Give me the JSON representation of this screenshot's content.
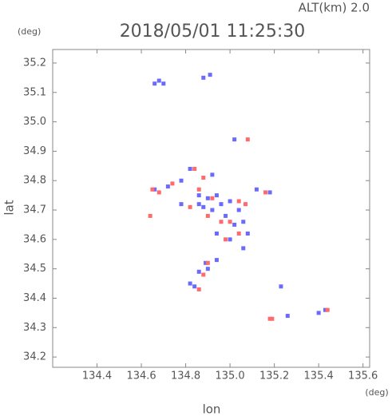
{
  "chart_data": {
    "type": "scatter",
    "title": "2018/05/01 11:25:30",
    "subtitle": "ALT(km) 2.0",
    "y_unit": "(deg)",
    "x_unit": "(deg)",
    "xlabel": "lon",
    "ylabel": "lat",
    "xlim": [
      134.2,
      135.63
    ],
    "ylim": [
      34.165,
      35.246
    ],
    "xticks": [
      134.4,
      134.6,
      134.8,
      {
        "value": 135,
        "label": "135.0"
      },
      135.2,
      135.4,
      135.6
    ],
    "yticks": [
      34.2,
      34.3,
      34.4,
      34.5,
      34.6,
      34.7,
      34.8,
      34.9,
      {
        "value": 35,
        "label": "35.0"
      },
      35.1,
      35.2
    ],
    "series": [
      {
        "color": "#6a6aff",
        "x": [
          134.68,
          134.7,
          134.66,
          134.91,
          134.88,
          135.02,
          134.82,
          134.78,
          134.72,
          134.66,
          134.86,
          134.9,
          134.94,
          134.88,
          134.92,
          134.96,
          135.0,
          135.04,
          135.06,
          135.02,
          134.98,
          134.94,
          135.08,
          135.06,
          134.94,
          134.9,
          134.86,
          134.82,
          134.84,
          135.18,
          135.12,
          135.23,
          135.26,
          135.4,
          135.43,
          134.92,
          134.86,
          135.0,
          134.89,
          134.78
        ],
        "values": [
          35.14,
          35.13,
          35.13,
          35.16,
          35.15,
          34.94,
          34.84,
          34.8,
          34.78,
          34.77,
          34.75,
          34.74,
          34.75,
          34.71,
          34.7,
          34.72,
          34.73,
          34.7,
          34.66,
          34.65,
          34.68,
          34.62,
          34.62,
          34.57,
          34.53,
          34.5,
          34.49,
          34.45,
          34.44,
          34.76,
          34.77,
          34.44,
          34.34,
          34.35,
          34.36,
          34.82,
          34.72,
          34.6,
          34.52,
          34.72
        ]
      },
      {
        "color": "#ff6a6a",
        "x": [
          134.64,
          134.65,
          134.68,
          134.74,
          134.84,
          134.86,
          134.92,
          134.9,
          134.96,
          135.0,
          135.04,
          135.07,
          134.98,
          135.04,
          134.88,
          134.86,
          134.9,
          135.19,
          135.18,
          135.44,
          135.08,
          134.82,
          135.16,
          134.88
        ],
        "values": [
          34.68,
          34.77,
          34.76,
          34.79,
          34.84,
          34.77,
          34.74,
          34.68,
          34.66,
          34.66,
          34.73,
          34.72,
          34.6,
          34.62,
          34.48,
          34.43,
          34.52,
          34.33,
          34.33,
          34.36,
          34.94,
          34.71,
          34.76,
          34.81
        ]
      }
    ]
  }
}
